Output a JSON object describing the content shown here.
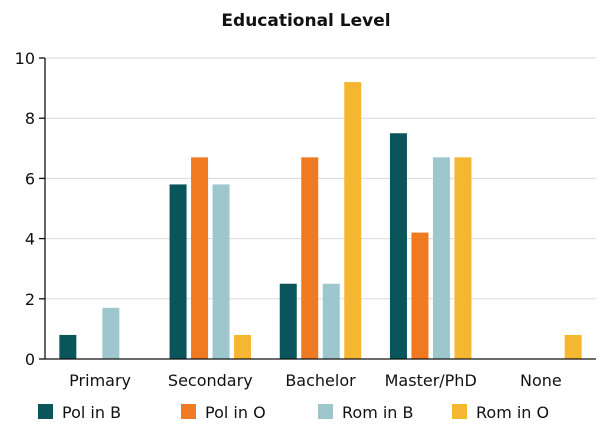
{
  "chart_data": {
    "type": "bar",
    "title": "Educational Level",
    "xlabel": "",
    "ylabel": "",
    "ylim": [
      0,
      10
    ],
    "yticks": [
      0,
      2,
      4,
      6,
      8,
      10
    ],
    "grid": true,
    "legend_position": "bottom",
    "categories": [
      "Primary",
      "Secondary",
      "Bachelor",
      "Master/PhD",
      "None"
    ],
    "series": [
      {
        "name": "Pol in B",
        "color": "#0a545c",
        "values": [
          0.8,
          5.8,
          2.5,
          7.5,
          0
        ]
      },
      {
        "name": "Pol in O",
        "color": "#f07a22",
        "values": [
          0,
          6.7,
          6.7,
          4.2,
          0
        ]
      },
      {
        "name": "Rom in B",
        "color": "#9ec7cd",
        "values": [
          1.7,
          5.8,
          2.5,
          6.7,
          0
        ]
      },
      {
        "name": "Rom in O",
        "color": "#f5b731",
        "values": [
          0,
          0.8,
          9.2,
          6.7,
          0.8
        ]
      }
    ]
  }
}
